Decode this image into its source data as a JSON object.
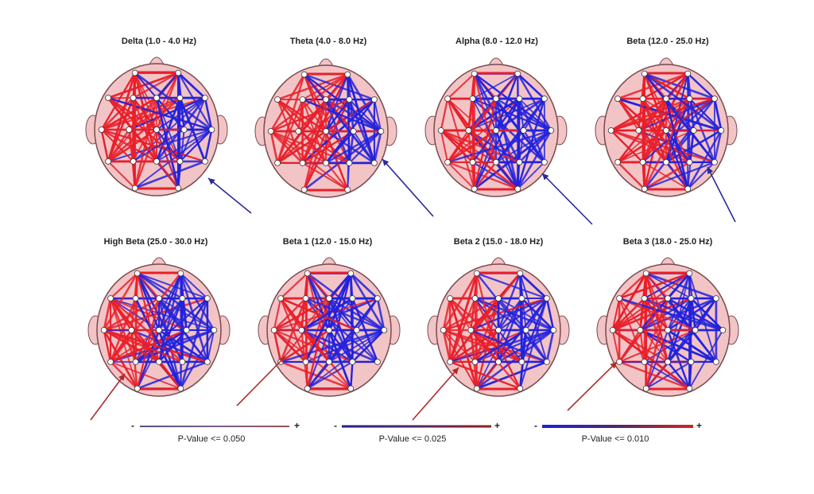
{
  "figure": {
    "rows": [
      {
        "bands": [
          {
            "title": "Delta (1.0 - 4.0 Hz)"
          },
          {
            "title": "Theta (4.0 - 8.0 Hz)"
          },
          {
            "title": "Alpha (8.0 - 12.0 Hz)"
          },
          {
            "title": "Beta (12.0 - 25.0 Hz)"
          }
        ]
      },
      {
        "bands": [
          {
            "title": "High Beta (25.0 - 30.0 Hz)"
          },
          {
            "title": "Beta 1 (12.0 - 15.0 Hz)"
          },
          {
            "title": "Beta 2 (15.0 - 18.0 Hz)"
          },
          {
            "title": "Beta 3 (18.0 - 25.0 Hz)"
          }
        ]
      }
    ],
    "legends": [
      {
        "minus": "-",
        "plus": "+",
        "label": "P-Value <= 0.050"
      },
      {
        "minus": "-",
        "plus": "+",
        "label": "P-Value <= 0.025"
      },
      {
        "minus": "-",
        "plus": "+",
        "label": "P-Value <= 0.010"
      }
    ],
    "colors": {
      "head_fill": "#f2c4c6",
      "head_stroke": "#7a4a4e",
      "positive": "#e8202a",
      "negative": "#2222dd",
      "electrode": "#ffffff",
      "arrow_top": "#2a2a9a",
      "arrow_bottom": "#b02a2a"
    }
  }
}
